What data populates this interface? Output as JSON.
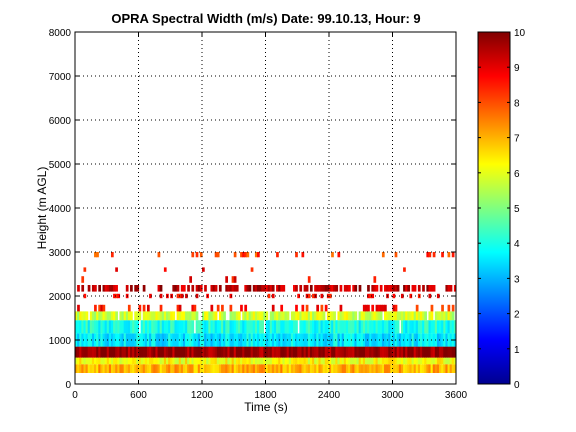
{
  "chart_data": {
    "type": "heatmap",
    "title": "OPRA Spectral Width (m/s)  Date: 99.10.13, Hour: 9",
    "xlabel": "Time (s)",
    "ylabel": "Height (m AGL)",
    "xlim": [
      0,
      3600
    ],
    "ylim": [
      0,
      8000
    ],
    "xticks": [
      "0",
      "600",
      "1200",
      "1800",
      "2400",
      "3000",
      "3600"
    ],
    "yticks": [
      "0",
      "1000",
      "2000",
      "3000",
      "4000",
      "5000",
      "6000",
      "7000",
      "8000"
    ],
    "grid": true,
    "colormap": "jet",
    "colorbar": {
      "range": [
        0,
        10
      ],
      "ticks": [
        "0",
        "1",
        "2",
        "3",
        "4",
        "5",
        "6",
        "7",
        "8",
        "9",
        "10"
      ]
    },
    "layers": [
      {
        "height_from": 250,
        "height_to": 450,
        "time_from": 0,
        "time_to": 3600,
        "value": 7.0,
        "coverage": 1.0
      },
      {
        "height_from": 450,
        "height_to": 600,
        "time_from": 0,
        "time_to": 3600,
        "value": 6.2,
        "coverage": 1.0
      },
      {
        "height_from": 600,
        "height_to": 850,
        "time_from": 0,
        "time_to": 3600,
        "value": 9.8,
        "coverage": 1.0
      },
      {
        "height_from": 850,
        "height_to": 1150,
        "time_from": 0,
        "time_to": 3600,
        "value": 3.6,
        "coverage": 1.0
      },
      {
        "height_from": 1150,
        "height_to": 1450,
        "time_from": 0,
        "time_to": 3600,
        "value": 4.0,
        "coverage": 0.95
      },
      {
        "height_from": 1450,
        "height_to": 1650,
        "time_from": 0,
        "time_to": 3600,
        "value": 5.8,
        "coverage": 0.9
      },
      {
        "height_from": 1650,
        "height_to": 1800,
        "time_from": 0,
        "time_to": 3600,
        "value": 8.6,
        "coverage": 0.25
      },
      {
        "height_from": 1950,
        "height_to": 2050,
        "time_from": 0,
        "time_to": 3600,
        "value": 8.8,
        "coverage": 0.2
      },
      {
        "height_from": 2100,
        "height_to": 2250,
        "time_from": 0,
        "time_to": 3600,
        "value": 9.4,
        "coverage": 0.6
      },
      {
        "height_from": 2300,
        "height_to": 2450,
        "time_from": 0,
        "time_to": 3600,
        "value": 8.8,
        "coverage": 0.06
      },
      {
        "height_from": 2550,
        "height_to": 2650,
        "time_from": 0,
        "time_to": 3600,
        "value": 8.8,
        "coverage": 0.04
      },
      {
        "height_from": 2880,
        "height_to": 3000,
        "time_from": 0,
        "time_to": 3600,
        "value": 8.2,
        "coverage": 0.15
      }
    ]
  }
}
